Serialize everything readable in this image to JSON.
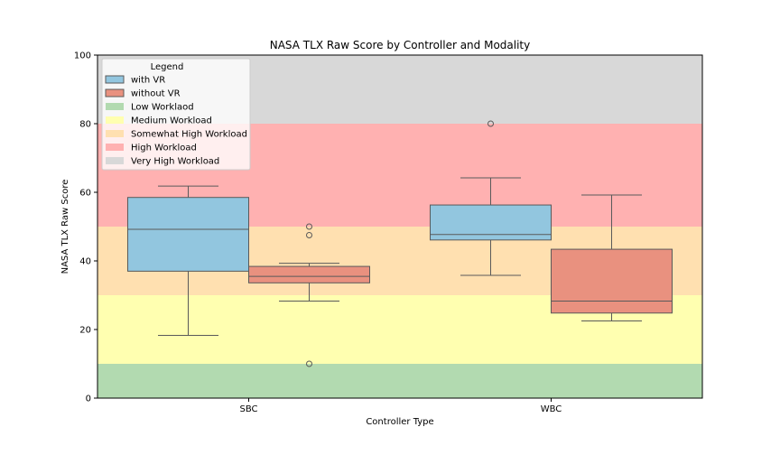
{
  "chart_data": {
    "type": "box",
    "title": "NASA TLX Raw Score by Controller and Modality",
    "xlabel": "Controller Type",
    "ylabel": "NASA TLX Raw Score",
    "ylim": [
      0,
      100
    ],
    "yticks": [
      0,
      20,
      40,
      60,
      80,
      100
    ],
    "categories": [
      "SBC",
      "WBC"
    ],
    "legend": {
      "title": "Legend",
      "position": "top-left",
      "entries": [
        {
          "label": "with VR",
          "color": "#92c6df"
        },
        {
          "label": "without VR",
          "color": "#e9917f"
        },
        {
          "label": "Low Worklaod",
          "color": "#b2dab0"
        },
        {
          "label": "Medium Workload",
          "color": "#ffffb0"
        },
        {
          "label": "Somewhat High Workload",
          "color": "#ffe0b0"
        },
        {
          "label": "High Workload",
          "color": "#ffb1b1"
        },
        {
          "label": "Very High Workload",
          "color": "#d8d8d8"
        }
      ]
    },
    "bands": [
      {
        "name": "Low Worklaod",
        "from": 0,
        "to": 10,
        "color": "#b2dab0"
      },
      {
        "name": "Medium Workload",
        "from": 10,
        "to": 30,
        "color": "#ffffb0"
      },
      {
        "name": "Somewhat High Workload",
        "from": 30,
        "to": 50,
        "color": "#ffe0b0"
      },
      {
        "name": "High Workload",
        "from": 50,
        "to": 80,
        "color": "#ffb1b1"
      },
      {
        "name": "Very High Workload",
        "from": 80,
        "to": 100,
        "color": "#d8d8d8"
      }
    ],
    "series": [
      {
        "name": "with VR",
        "color": "#92c6df",
        "boxes": [
          {
            "category": "SBC",
            "whisker_low": 18.3,
            "q1": 37.0,
            "median": 49.2,
            "q3": 58.5,
            "whisker_high": 61.8,
            "outliers": []
          },
          {
            "category": "WBC",
            "whisker_low": 35.8,
            "q1": 46.1,
            "median": 47.7,
            "q3": 56.3,
            "whisker_high": 64.2,
            "outliers": [
              80.0
            ]
          }
        ]
      },
      {
        "name": "without VR",
        "color": "#e9917f",
        "boxes": [
          {
            "category": "SBC",
            "whisker_low": 28.3,
            "q1": 33.6,
            "median": 35.5,
            "q3": 38.4,
            "whisker_high": 39.3,
            "outliers": [
              10.0,
              47.5,
              50.0
            ]
          },
          {
            "category": "WBC",
            "whisker_low": 22.5,
            "q1": 24.8,
            "median": 28.3,
            "q3": 43.4,
            "whisker_high": 59.2,
            "outliers": []
          }
        ]
      }
    ]
  }
}
